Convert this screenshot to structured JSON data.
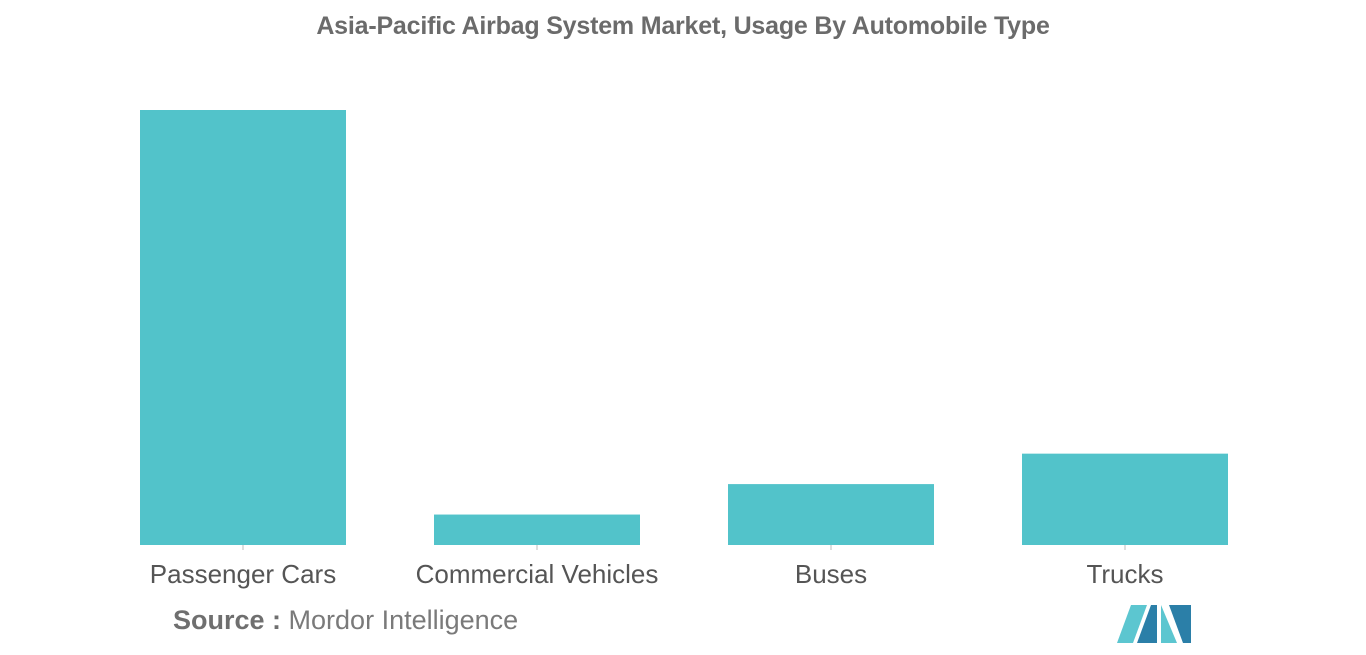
{
  "chart_data": {
    "type": "bar",
    "title": "Asia-Pacific Airbag System Market, Usage By Automobile Type",
    "categories": [
      "Passenger Cars",
      "Commercial Vehicles",
      "Buses",
      "Trucks"
    ],
    "values": [
      100,
      7,
      14,
      21
    ],
    "xlabel": "",
    "ylabel": "",
    "ylim": [
      0,
      100
    ],
    "grid": false,
    "legend": "none",
    "bar_color": "#52c3ca"
  },
  "source": {
    "label": "Source :",
    "text": "Mordor Intelligence"
  },
  "logo": {
    "icon": "mordor-intelligence-logo-icon",
    "colors": [
      "#5cc6d0",
      "#2b5f8a"
    ]
  }
}
